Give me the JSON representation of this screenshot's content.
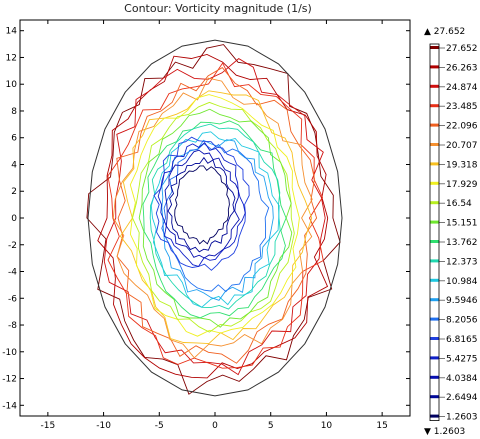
{
  "chart_data": {
    "type": "contour",
    "title": "Contour: Vorticity magnitude (1/s)",
    "xlabel": "",
    "ylabel": "",
    "xlim": [
      -17.5,
      17.5
    ],
    "ylim": [
      -14.8,
      14.8
    ],
    "x_ticks": [
      -15,
      -10,
      -5,
      0,
      5,
      10,
      15
    ],
    "y_ticks": [
      14,
      12,
      10,
      8,
      6,
      4,
      2,
      0,
      -2,
      -4,
      -6,
      -8,
      -10,
      -12,
      -14
    ],
    "grid": false,
    "colormap": "rainbow",
    "color_range": {
      "max_label": "▲ 27.652",
      "min_label": "▼ 1.2603",
      "max": 27.652,
      "min": 1.2603
    },
    "legend_position": "right",
    "contour_levels": [
      {
        "label": "27.652",
        "value": 27.652,
        "color": "#800000"
      },
      {
        "label": "26.263",
        "value": 26.263,
        "color": "#b00000"
      },
      {
        "label": "24.874",
        "value": 24.874,
        "color": "#d01010"
      },
      {
        "label": "23.485",
        "value": 23.485,
        "color": "#e83018"
      },
      {
        "label": "22.096",
        "value": 22.096,
        "color": "#f06020"
      },
      {
        "label": "20.707",
        "value": 20.707,
        "color": "#f59030"
      },
      {
        "label": "19.318",
        "value": 19.318,
        "color": "#f8c020"
      },
      {
        "label": "17.929",
        "value": 17.929,
        "color": "#f0f020"
      },
      {
        "label": "16.54",
        "value": 16.54,
        "color": "#b8f020"
      },
      {
        "label": "15.151",
        "value": 15.151,
        "color": "#70e830"
      },
      {
        "label": "13.762",
        "value": 13.762,
        "color": "#30e070"
      },
      {
        "label": "12.373",
        "value": 12.373,
        "color": "#20d8b0"
      },
      {
        "label": "10.984",
        "value": 10.984,
        "color": "#20c8e0"
      },
      {
        "label": "9.5946",
        "value": 9.5946,
        "color": "#20a0f0"
      },
      {
        "label": "8.2056",
        "value": 8.2056,
        "color": "#2070f0"
      },
      {
        "label": "6.8165",
        "value": 6.8165,
        "color": "#2040e0"
      },
      {
        "label": "5.4275",
        "value": 5.4275,
        "color": "#1020c8"
      },
      {
        "label": "4.0384",
        "value": 4.0384,
        "color": "#0810b0"
      },
      {
        "label": "2.6494",
        "value": 2.6494,
        "color": "#000898"
      },
      {
        "label": "1.2603",
        "value": 1.2603,
        "color": "#000060"
      }
    ],
    "domain_boundary": {
      "shape": "ellipse",
      "center": [
        0,
        0
      ],
      "semi_axis_x": 11.4,
      "semi_axis_y": 13.3
    }
  }
}
